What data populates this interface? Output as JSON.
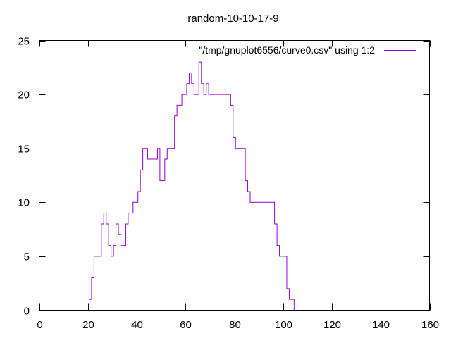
{
  "chart_data": {
    "type": "line",
    "title": "random-10-10-17-9",
    "xlabel": "",
    "ylabel": "",
    "xlim": [
      0,
      160
    ],
    "ylim": [
      0,
      25
    ],
    "xticks": [
      0,
      20,
      40,
      60,
      80,
      100,
      120,
      140,
      160
    ],
    "yticks": [
      0,
      5,
      10,
      15,
      20,
      25
    ],
    "grid": false,
    "legend_position": "top-right",
    "step": true,
    "series": [
      {
        "name": "\"/tmp/gnuplot6556/curve0.csv\" using 1:2",
        "color": "#9400d3",
        "x": [
          21,
          22,
          23,
          24,
          25,
          26,
          27,
          28,
          29,
          30,
          31,
          32,
          33,
          34,
          35,
          36,
          37,
          38,
          39,
          40,
          41,
          42,
          43,
          44,
          45,
          46,
          47,
          48,
          49,
          50,
          51,
          52,
          53,
          54,
          55,
          56,
          57,
          58,
          59,
          60,
          61,
          62,
          63,
          64,
          65,
          66,
          67,
          68,
          69,
          70,
          71,
          72,
          73,
          74,
          75,
          76,
          77,
          78,
          79,
          80,
          81,
          82,
          83,
          84,
          85,
          86,
          87,
          88,
          89,
          90,
          91,
          92,
          93,
          94,
          95,
          96,
          97,
          98,
          99,
          100,
          101,
          102,
          103,
          104
        ],
        "y": [
          1,
          3,
          5,
          5,
          5,
          8,
          9,
          8,
          6,
          5,
          6,
          8,
          7,
          6,
          6,
          8,
          9,
          9,
          10,
          10,
          11,
          13,
          15,
          15,
          14,
          14,
          14,
          14,
          15,
          12,
          12,
          14,
          15,
          15,
          15,
          18,
          19,
          19,
          20,
          20,
          21,
          22,
          21,
          20,
          20,
          23,
          21,
          20,
          21,
          20,
          20,
          20,
          20,
          20,
          20,
          20,
          20,
          20,
          19,
          16,
          15,
          15,
          15,
          15,
          12,
          11,
          10,
          10,
          10,
          10,
          10,
          10,
          10,
          10,
          10,
          10,
          8,
          6,
          5,
          5,
          5,
          2,
          1,
          1
        ]
      }
    ]
  }
}
